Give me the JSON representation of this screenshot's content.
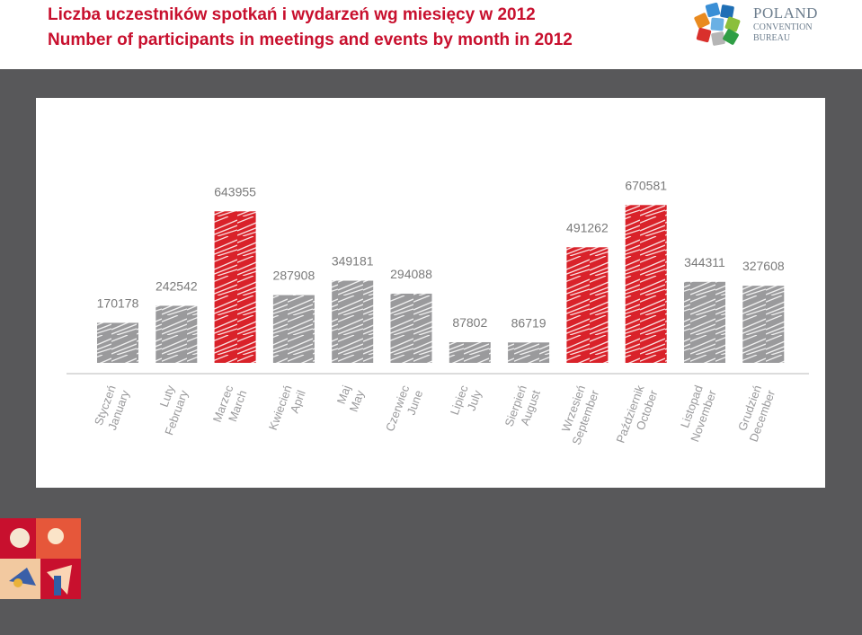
{
  "header": {
    "title_pl": "Liczba uczestników spotkań i wydarzeń wg miesięcy w 2012",
    "title_en": "Number of participants in meetings and events by month in 2012"
  },
  "logo": {
    "line1": "POLAND",
    "line2": "CONVENTION",
    "line3": "BUREAU"
  },
  "colors": {
    "title": "#c8102e",
    "highlight_bar": "#d9222a",
    "normal_bar": "#9a9a9c",
    "background_dark": "#58585a",
    "value_label": "#7a7a7a"
  },
  "chart_data": {
    "type": "bar",
    "categories": [
      [
        "Styczeń",
        "January"
      ],
      [
        "Luty",
        "February"
      ],
      [
        "Marzec",
        "March"
      ],
      [
        "Kwiecień",
        "April"
      ],
      [
        "Maj",
        "May"
      ],
      [
        "Czerwiec",
        "June"
      ],
      [
        "Lipiec",
        "July"
      ],
      [
        "Sierpień",
        "August"
      ],
      [
        "Wrzesień",
        "September"
      ],
      [
        "Październik",
        "October"
      ],
      [
        "Listopad",
        "November"
      ],
      [
        "Grudzień",
        "December"
      ]
    ],
    "values": [
      170178,
      242542,
      643955,
      287908,
      349181,
      294088,
      87802,
      86719,
      491262,
      670581,
      344311,
      327608
    ],
    "value_labels": [
      "170178",
      "242542",
      "643955",
      "287908",
      "349181",
      "294088",
      "87802",
      "86719",
      "491262",
      "670581",
      "344311",
      "327608"
    ],
    "highlighted": [
      false,
      false,
      true,
      false,
      false,
      false,
      false,
      false,
      true,
      true,
      false,
      false
    ],
    "ylim": [
      0,
      700000
    ],
    "grid": false,
    "legend": "none"
  }
}
